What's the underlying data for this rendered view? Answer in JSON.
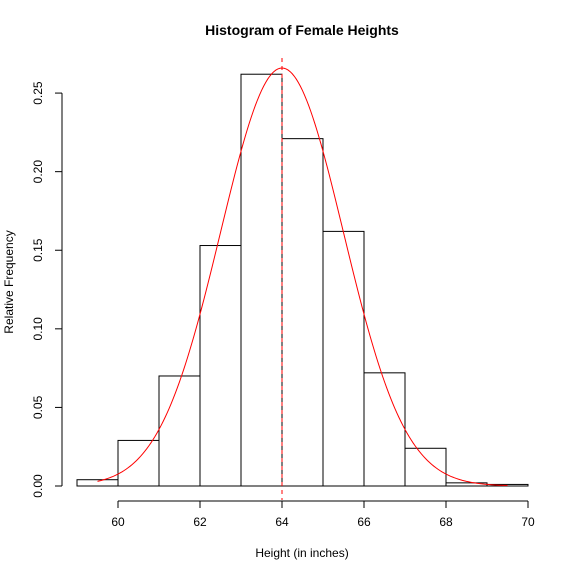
{
  "chart_data": {
    "type": "bar",
    "title": "Histogram of Female Heights",
    "xlabel": "Height (in inches)",
    "ylabel": "Relative Frequency",
    "xlim": [
      59,
      70
    ],
    "ylim": [
      0,
      0.265
    ],
    "x_ticks": [
      "60",
      "62",
      "64",
      "66",
      "68",
      "70"
    ],
    "y_ticks": [
      "0.00",
      "0.05",
      "0.10",
      "0.15",
      "0.20",
      "0.25"
    ],
    "bins": [
      {
        "from": 59,
        "to": 60,
        "value": 0.004
      },
      {
        "from": 60,
        "to": 61,
        "value": 0.029
      },
      {
        "from": 61,
        "to": 62,
        "value": 0.07
      },
      {
        "from": 62,
        "to": 63,
        "value": 0.153
      },
      {
        "from": 63,
        "to": 64,
        "value": 0.262
      },
      {
        "from": 64,
        "to": 65,
        "value": 0.221
      },
      {
        "from": 65,
        "to": 66,
        "value": 0.162
      },
      {
        "from": 66,
        "to": 67,
        "value": 0.072
      },
      {
        "from": 67,
        "to": 68,
        "value": 0.024
      },
      {
        "from": 68,
        "to": 69,
        "value": 0.002
      },
      {
        "from": 69,
        "to": 70,
        "value": 0.001
      }
    ],
    "density_curve": {
      "mean": 64.0,
      "sd": 1.5,
      "x_range": [
        59.5,
        69.5
      ],
      "color": "#ff0000"
    },
    "mean_line": {
      "x": 64.0,
      "color": "#ff0000",
      "style": "dashed"
    },
    "bar_fill": "#ffffff",
    "bar_stroke": "#000000",
    "grid": false
  }
}
